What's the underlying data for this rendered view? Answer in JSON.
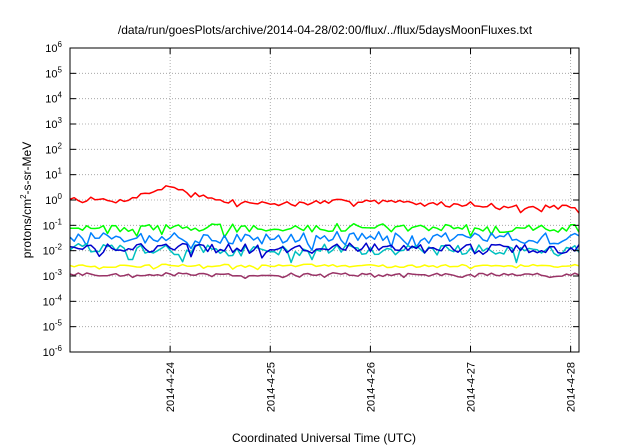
{
  "chart_data": {
    "type": "line",
    "title": "/data/run/goesPlots/archive/2014-04-28/02:00/flux/../flux/5daysMoonFluxes.txt",
    "xlabel": "Coordinated Universal Time (UTC)",
    "ylabel": "protons/cm²-s-sr-MeV",
    "ylabel_parts": {
      "pre": "protons/cm",
      "sup": "2",
      "post": "-s-sr-MeV"
    },
    "yscale": "log",
    "ylim": [
      1e-06,
      1000000.0
    ],
    "xlim": [
      "2014-04-23 00:00",
      "2014-04-28 02:00"
    ],
    "grid": true,
    "x_ticks": [
      "2014-4-24",
      "2014-4-25",
      "2014-4-26",
      "2014-4-27",
      "2014-4-28"
    ],
    "y_ticks": [
      {
        "base": "10",
        "exp": "-6"
      },
      {
        "base": "10",
        "exp": "-5"
      },
      {
        "base": "10",
        "exp": "-4"
      },
      {
        "base": "10",
        "exp": "-3"
      },
      {
        "base": "10",
        "exp": "-2"
      },
      {
        "base": "10",
        "exp": "-1"
      },
      {
        "base": "10",
        "exp": "0"
      },
      {
        "base": "10",
        "exp": "1"
      },
      {
        "base": "10",
        "exp": "2"
      },
      {
        "base": "10",
        "exp": "3"
      },
      {
        "base": "10",
        "exp": "4"
      },
      {
        "base": "10",
        "exp": "5"
      },
      {
        "base": "10",
        "exp": "6"
      }
    ],
    "x": [
      "2014-04-23 00:00",
      "2014-04-23 12:00",
      "2014-04-24 00:00",
      "2014-04-24 12:00",
      "2014-04-25 00:00",
      "2014-04-25 12:00",
      "2014-04-26 00:00",
      "2014-04-26 12:00",
      "2014-04-27 00:00",
      "2014-04-27 12:00",
      "2014-04-28 00:00",
      "2014-04-28 02:00"
    ],
    "series": [
      {
        "color": "#ff0000",
        "values": [
          1.2,
          0.9,
          3.5,
          0.9,
          0.7,
          0.8,
          1.0,
          0.7,
          0.7,
          0.5,
          0.55,
          0.3
        ]
      },
      {
        "color": "#00ff00",
        "values": [
          0.09,
          0.07,
          0.08,
          0.08,
          0.07,
          0.08,
          0.09,
          0.07,
          0.08,
          0.07,
          0.08,
          0.07
        ]
      },
      {
        "color": "#0080ff",
        "values": [
          0.04,
          0.03,
          0.035,
          0.03,
          0.03,
          0.035,
          0.04,
          0.03,
          0.035,
          0.03,
          0.03,
          0.03
        ]
      },
      {
        "color": "#00c0c0",
        "values": [
          0.012,
          0.01,
          0.011,
          0.01,
          0.01,
          0.011,
          0.012,
          0.01,
          0.011,
          0.01,
          0.01,
          0.01
        ]
      },
      {
        "color": "#0000cc",
        "values": [
          0.015,
          0.012,
          0.013,
          0.012,
          0.012,
          0.013,
          0.014,
          0.012,
          0.013,
          0.012,
          0.012,
          0.012
        ]
      },
      {
        "color": "#ffff00",
        "values": [
          0.0026,
          0.0025,
          0.0026,
          0.0025,
          0.0025,
          0.0026,
          0.0025,
          0.0025,
          0.0026,
          0.0025,
          0.0025,
          0.0025
        ]
      },
      {
        "color": "#993366",
        "values": [
          0.0012,
          0.0011,
          0.0012,
          0.0011,
          0.0011,
          0.0012,
          0.0011,
          0.0011,
          0.0012,
          0.0011,
          0.0011,
          0.0012
        ]
      }
    ]
  }
}
